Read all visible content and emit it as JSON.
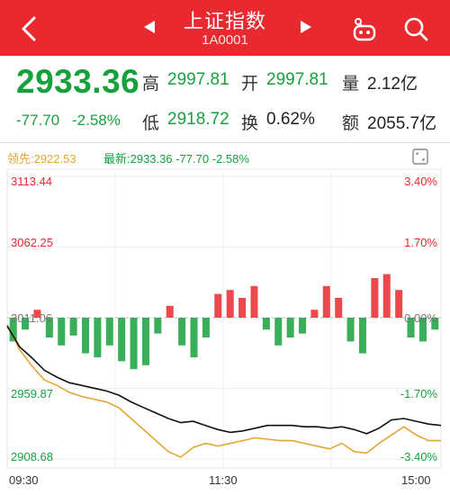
{
  "header": {
    "back_icon": "chevron-left-icon",
    "title": "上证指数",
    "code": "1A0001",
    "prev_icon": "triangle-left-icon",
    "next_icon": "triangle-right-icon",
    "robot_icon": "robot-icon",
    "search_icon": "search-icon"
  },
  "quote": {
    "price": "2933.36",
    "change": "-77.70",
    "change_pct": "-2.58%",
    "high_label": "高",
    "high": "2997.81",
    "open_label": "开",
    "open": "2997.81",
    "volume_label": "量",
    "volume": "2.12亿",
    "low_label": "低",
    "low": "2918.72",
    "turnover_label": "换",
    "turnover": "0.62%",
    "amount_label": "额",
    "amount": "2055.7亿"
  },
  "legend": {
    "prev": "领先:2922.53",
    "latest": "最新:2933.36  -77.70  -2.58%",
    "expand_icon": "expand-icon"
  },
  "axes": {
    "y_left": [
      "3113.44",
      "3062.25",
      "3011.06",
      "2959.87",
      "2908.68"
    ],
    "y_right": [
      "3.40%",
      "1.70%",
      "0.00%",
      "-1.70%",
      "-3.40%"
    ],
    "x": [
      "09:30",
      "11:30",
      "15:00"
    ]
  },
  "colors": {
    "up": "#e8292f",
    "down": "#15a13b",
    "lead": "#e6a532",
    "price": "#111111",
    "header": "#e8292f"
  },
  "chart_data": {
    "type": "line",
    "series": [
      {
        "name": "最新",
        "values": [
          3005,
          2990,
          2982,
          2973,
          2968,
          2964,
          2962,
          2960,
          2958,
          2955,
          2950,
          2946,
          2942,
          2938,
          2935,
          2936,
          2933,
          2930,
          2928,
          2929,
          2931,
          2933,
          2933,
          2933,
          2932,
          2932,
          2931,
          2932,
          2930,
          2927,
          2931,
          2937,
          2938,
          2936,
          2934,
          2933
        ]
      },
      {
        "name": "领先",
        "values": [
          3006,
          2988,
          2976,
          2966,
          2962,
          2957,
          2954,
          2952,
          2950,
          2946,
          2938,
          2930,
          2922,
          2914,
          2910,
          2917,
          2920,
          2918,
          2920,
          2922,
          2924,
          2923,
          2922,
          2922,
          2920,
          2918,
          2916,
          2920,
          2914,
          2913,
          2920,
          2926,
          2932,
          2926,
          2922,
          2922
        ]
      }
    ],
    "bars": [
      -12,
      -6,
      4,
      -10,
      -14,
      -9,
      -18,
      -20,
      -14,
      -22,
      -26,
      -24,
      -8,
      6,
      -14,
      -20,
      -10,
      12,
      14,
      10,
      16,
      -6,
      -14,
      -10,
      -8,
      4,
      16,
      10,
      -12,
      -18,
      20,
      22,
      14,
      -10,
      -12,
      -6
    ],
    "ylim": [
      2908.68,
      3113.44
    ],
    "baseline": 3011.06
  }
}
